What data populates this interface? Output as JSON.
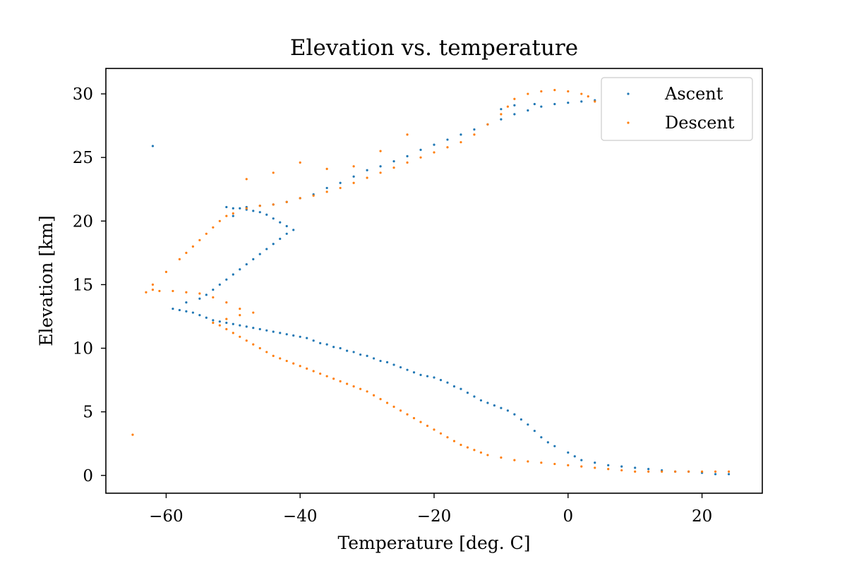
{
  "chart_data": {
    "type": "scatter",
    "title": "Elevation vs. temperature",
    "xlabel": "Temperature [deg. C]",
    "ylabel": "Elevation [km]",
    "xlim": [
      -69,
      29
    ],
    "ylim": [
      -1.4,
      32.0
    ],
    "x_ticks": [
      -60,
      -40,
      -20,
      0,
      20
    ],
    "x_tick_labels": [
      "−60",
      "−40",
      "−20",
      "0",
      "20"
    ],
    "y_ticks": [
      0,
      5,
      10,
      15,
      20,
      25,
      30
    ],
    "y_tick_labels": [
      "0",
      "5",
      "10",
      "15",
      "20",
      "25",
      "30"
    ],
    "grid": false,
    "legend": "top-right",
    "series": [
      {
        "name": "Ascent",
        "color": "#1f77b4",
        "marker": "point",
        "x": [
          24,
          22,
          20,
          18,
          16,
          14,
          12,
          10,
          8,
          6,
          4,
          2,
          1,
          0,
          -2,
          -3,
          -4,
          -5,
          -6,
          -7,
          -8,
          -9,
          -10,
          -11,
          -12,
          -13,
          -14,
          -15,
          -16,
          -17,
          -18,
          -19,
          -20,
          -21,
          -22,
          -23,
          -24,
          -25,
          -26,
          -27,
          -28,
          -29,
          -30,
          -31,
          -32,
          -33,
          -34,
          -35,
          -36,
          -37,
          -38,
          -39,
          -40,
          -41,
          -42,
          -43,
          -44,
          -45,
          -46,
          -47,
          -48,
          -49,
          -50,
          -51,
          -52,
          -53,
          -54,
          -55,
          -56,
          -57,
          -58,
          -59,
          -57,
          -55,
          -54,
          -53,
          -52,
          -51,
          -50,
          -49,
          -48,
          -47,
          -46,
          -45,
          -44,
          -43,
          -42,
          -41,
          -42,
          -43,
          -44,
          -45,
          -46,
          -47,
          -48,
          -49,
          -50,
          -51,
          -50,
          -48,
          -46,
          -44,
          -42,
          -40,
          -38,
          -36,
          -34,
          -32,
          -30,
          -28,
          -26,
          -24,
          -22,
          -20,
          -18,
          -16,
          -14,
          -12,
          -10,
          -8,
          -6,
          -4,
          -2,
          0,
          2,
          4,
          -62,
          -10,
          -8,
          -5
        ],
        "y": [
          0.1,
          0.1,
          0.2,
          0.3,
          0.3,
          0.4,
          0.5,
          0.6,
          0.7,
          0.8,
          1.0,
          1.2,
          1.5,
          1.8,
          2.3,
          2.6,
          3.0,
          3.5,
          4.0,
          4.4,
          4.8,
          5.1,
          5.3,
          5.5,
          5.7,
          5.9,
          6.2,
          6.5,
          6.8,
          7.0,
          7.3,
          7.5,
          7.7,
          7.8,
          7.9,
          8.1,
          8.3,
          8.5,
          8.7,
          8.9,
          9.0,
          9.2,
          9.4,
          9.5,
          9.7,
          9.8,
          10.0,
          10.1,
          10.3,
          10.4,
          10.6,
          10.8,
          10.9,
          11.0,
          11.1,
          11.2,
          11.3,
          11.4,
          11.5,
          11.6,
          11.7,
          11.8,
          11.9,
          12.0,
          12.1,
          12.2,
          12.4,
          12.6,
          12.8,
          12.9,
          13.0,
          13.1,
          13.6,
          13.9,
          14.2,
          14.6,
          15.0,
          15.4,
          15.8,
          16.2,
          16.6,
          17.0,
          17.4,
          17.8,
          18.2,
          18.6,
          19.0,
          19.3,
          19.6,
          19.9,
          20.2,
          20.5,
          20.7,
          20.8,
          20.9,
          21.0,
          21.0,
          21.1,
          20.4,
          21.1,
          21.2,
          21.3,
          21.5,
          21.8,
          22.1,
          22.6,
          23.0,
          23.5,
          24.0,
          24.3,
          24.7,
          25.1,
          25.6,
          26.0,
          26.4,
          26.8,
          27.2,
          27.6,
          28.0,
          28.4,
          28.7,
          29.0,
          29.2,
          29.3,
          29.4,
          29.5,
          25.9,
          28.8,
          29.1,
          29.2
        ]
      },
      {
        "name": "Descent",
        "color": "#ff7f0e",
        "marker": "point",
        "x": [
          24,
          22,
          20,
          18,
          16,
          14,
          12,
          10,
          8,
          6,
          4,
          2,
          0,
          -2,
          -4,
          -6,
          -8,
          -10,
          -12,
          -13,
          -14,
          -15,
          -16,
          -17,
          -18,
          -19,
          -20,
          -21,
          -22,
          -23,
          -24,
          -25,
          -26,
          -27,
          -28,
          -29,
          -30,
          -31,
          -32,
          -33,
          -34,
          -35,
          -36,
          -37,
          -38,
          -39,
          -40,
          -41,
          -42,
          -43,
          -44,
          -45,
          -46,
          -47,
          -48,
          -49,
          -50,
          -51,
          -52,
          -53,
          -51,
          -49,
          -47,
          -49,
          -51,
          -53,
          -55,
          -57,
          -59,
          -61,
          -62,
          -63,
          -62,
          -60,
          -58,
          -57,
          -56,
          -55,
          -54,
          -53,
          -52,
          -51,
          -50,
          -48,
          -46,
          -44,
          -42,
          -40,
          -38,
          -36,
          -34,
          -32,
          -30,
          -28,
          -26,
          -24,
          -22,
          -20,
          -18,
          -16,
          -14,
          -12,
          -10,
          -9,
          -8,
          -6,
          -4,
          -2,
          0,
          2,
          3,
          4,
          -65,
          -32,
          -28,
          -24,
          -36,
          -40,
          -44,
          -48
        ],
        "y": [
          0.3,
          0.3,
          0.3,
          0.3,
          0.3,
          0.3,
          0.3,
          0.3,
          0.4,
          0.5,
          0.6,
          0.7,
          0.8,
          0.9,
          1.0,
          1.1,
          1.2,
          1.4,
          1.6,
          1.8,
          2.0,
          2.2,
          2.4,
          2.7,
          3.0,
          3.3,
          3.6,
          3.9,
          4.2,
          4.5,
          4.8,
          5.1,
          5.4,
          5.7,
          6.0,
          6.3,
          6.6,
          6.8,
          7.0,
          7.2,
          7.4,
          7.6,
          7.8,
          8.0,
          8.2,
          8.4,
          8.6,
          8.8,
          9.0,
          9.2,
          9.4,
          9.7,
          10.0,
          10.3,
          10.6,
          10.9,
          11.2,
          11.5,
          11.8,
          12.0,
          12.3,
          12.6,
          12.8,
          13.1,
          13.6,
          14.0,
          14.3,
          14.4,
          14.5,
          14.5,
          14.6,
          14.4,
          15.0,
          16.0,
          17.0,
          17.5,
          18.0,
          18.5,
          19.0,
          19.5,
          20.0,
          20.4,
          20.6,
          21.0,
          21.2,
          21.3,
          21.5,
          21.8,
          22.0,
          22.3,
          22.6,
          23.0,
          23.4,
          23.8,
          24.2,
          24.6,
          25.0,
          25.4,
          25.8,
          26.2,
          26.8,
          27.6,
          28.4,
          29.0,
          29.6,
          30.0,
          30.2,
          30.3,
          30.2,
          30.0,
          29.8,
          29.4,
          3.2,
          24.3,
          25.5,
          26.8,
          24.1,
          24.6,
          23.8,
          23.3
        ]
      }
    ]
  }
}
